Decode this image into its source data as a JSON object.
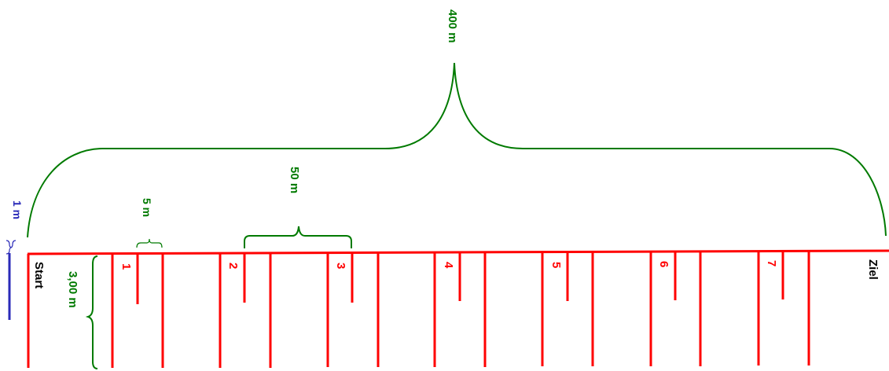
{
  "labels": {
    "total_distance": "400 m",
    "segment_distance": "50 m",
    "small_distance": "5 m",
    "scale_unit": "1 m",
    "height": "3,00 m",
    "start": "Start",
    "finish": "Ziel"
  },
  "markers": [
    "1",
    "2",
    "3",
    "4",
    "5",
    "6",
    "7"
  ],
  "colors": {
    "track": "#ff0000",
    "dimension": "#007a00",
    "scale": "#2a2ab8",
    "text": "#000000"
  }
}
